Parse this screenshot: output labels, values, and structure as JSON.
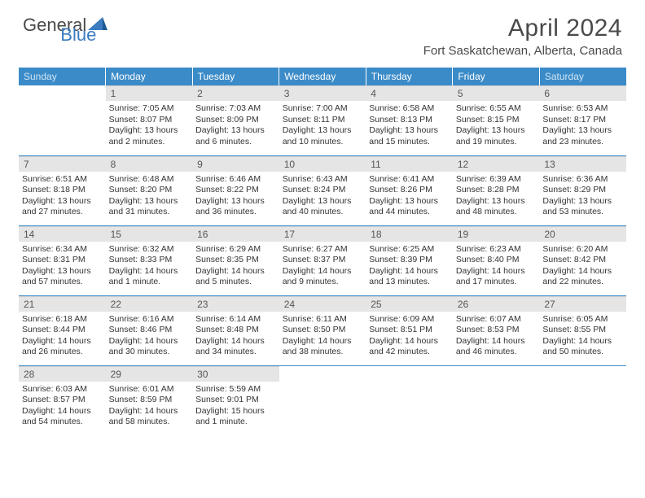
{
  "logo": {
    "part1": "General",
    "part2": "Blue"
  },
  "title": "April 2024",
  "location": "Fort Saskatchewan, Alberta, Canada",
  "colors": {
    "header_bg": "#3b8bc8",
    "header_text": "#ffffff",
    "weekend_text": "#cfe6f5",
    "daynum_bg": "#e5e5e5",
    "border": "#3b8bc8",
    "logo_blue": "#3b7bbf",
    "text": "#4a4a4a"
  },
  "weekdays": [
    "Sunday",
    "Monday",
    "Tuesday",
    "Wednesday",
    "Thursday",
    "Friday",
    "Saturday"
  ],
  "weeks": [
    [
      null,
      {
        "n": "1",
        "sr": "7:05 AM",
        "ss": "8:07 PM",
        "dl": "13 hours and 2 minutes."
      },
      {
        "n": "2",
        "sr": "7:03 AM",
        "ss": "8:09 PM",
        "dl": "13 hours and 6 minutes."
      },
      {
        "n": "3",
        "sr": "7:00 AM",
        "ss": "8:11 PM",
        "dl": "13 hours and 10 minutes."
      },
      {
        "n": "4",
        "sr": "6:58 AM",
        "ss": "8:13 PM",
        "dl": "13 hours and 15 minutes."
      },
      {
        "n": "5",
        "sr": "6:55 AM",
        "ss": "8:15 PM",
        "dl": "13 hours and 19 minutes."
      },
      {
        "n": "6",
        "sr": "6:53 AM",
        "ss": "8:17 PM",
        "dl": "13 hours and 23 minutes."
      }
    ],
    [
      {
        "n": "7",
        "sr": "6:51 AM",
        "ss": "8:18 PM",
        "dl": "13 hours and 27 minutes."
      },
      {
        "n": "8",
        "sr": "6:48 AM",
        "ss": "8:20 PM",
        "dl": "13 hours and 31 minutes."
      },
      {
        "n": "9",
        "sr": "6:46 AM",
        "ss": "8:22 PM",
        "dl": "13 hours and 36 minutes."
      },
      {
        "n": "10",
        "sr": "6:43 AM",
        "ss": "8:24 PM",
        "dl": "13 hours and 40 minutes."
      },
      {
        "n": "11",
        "sr": "6:41 AM",
        "ss": "8:26 PM",
        "dl": "13 hours and 44 minutes."
      },
      {
        "n": "12",
        "sr": "6:39 AM",
        "ss": "8:28 PM",
        "dl": "13 hours and 48 minutes."
      },
      {
        "n": "13",
        "sr": "6:36 AM",
        "ss": "8:29 PM",
        "dl": "13 hours and 53 minutes."
      }
    ],
    [
      {
        "n": "14",
        "sr": "6:34 AM",
        "ss": "8:31 PM",
        "dl": "13 hours and 57 minutes."
      },
      {
        "n": "15",
        "sr": "6:32 AM",
        "ss": "8:33 PM",
        "dl": "14 hours and 1 minute."
      },
      {
        "n": "16",
        "sr": "6:29 AM",
        "ss": "8:35 PM",
        "dl": "14 hours and 5 minutes."
      },
      {
        "n": "17",
        "sr": "6:27 AM",
        "ss": "8:37 PM",
        "dl": "14 hours and 9 minutes."
      },
      {
        "n": "18",
        "sr": "6:25 AM",
        "ss": "8:39 PM",
        "dl": "14 hours and 13 minutes."
      },
      {
        "n": "19",
        "sr": "6:23 AM",
        "ss": "8:40 PM",
        "dl": "14 hours and 17 minutes."
      },
      {
        "n": "20",
        "sr": "6:20 AM",
        "ss": "8:42 PM",
        "dl": "14 hours and 22 minutes."
      }
    ],
    [
      {
        "n": "21",
        "sr": "6:18 AM",
        "ss": "8:44 PM",
        "dl": "14 hours and 26 minutes."
      },
      {
        "n": "22",
        "sr": "6:16 AM",
        "ss": "8:46 PM",
        "dl": "14 hours and 30 minutes."
      },
      {
        "n": "23",
        "sr": "6:14 AM",
        "ss": "8:48 PM",
        "dl": "14 hours and 34 minutes."
      },
      {
        "n": "24",
        "sr": "6:11 AM",
        "ss": "8:50 PM",
        "dl": "14 hours and 38 minutes."
      },
      {
        "n": "25",
        "sr": "6:09 AM",
        "ss": "8:51 PM",
        "dl": "14 hours and 42 minutes."
      },
      {
        "n": "26",
        "sr": "6:07 AM",
        "ss": "8:53 PM",
        "dl": "14 hours and 46 minutes."
      },
      {
        "n": "27",
        "sr": "6:05 AM",
        "ss": "8:55 PM",
        "dl": "14 hours and 50 minutes."
      }
    ],
    [
      {
        "n": "28",
        "sr": "6:03 AM",
        "ss": "8:57 PM",
        "dl": "14 hours and 54 minutes."
      },
      {
        "n": "29",
        "sr": "6:01 AM",
        "ss": "8:59 PM",
        "dl": "14 hours and 58 minutes."
      },
      {
        "n": "30",
        "sr": "5:59 AM",
        "ss": "9:01 PM",
        "dl": "15 hours and 1 minute."
      },
      null,
      null,
      null,
      null
    ]
  ],
  "labels": {
    "sunrise": "Sunrise:",
    "sunset": "Sunset:",
    "daylight": "Daylight:"
  }
}
